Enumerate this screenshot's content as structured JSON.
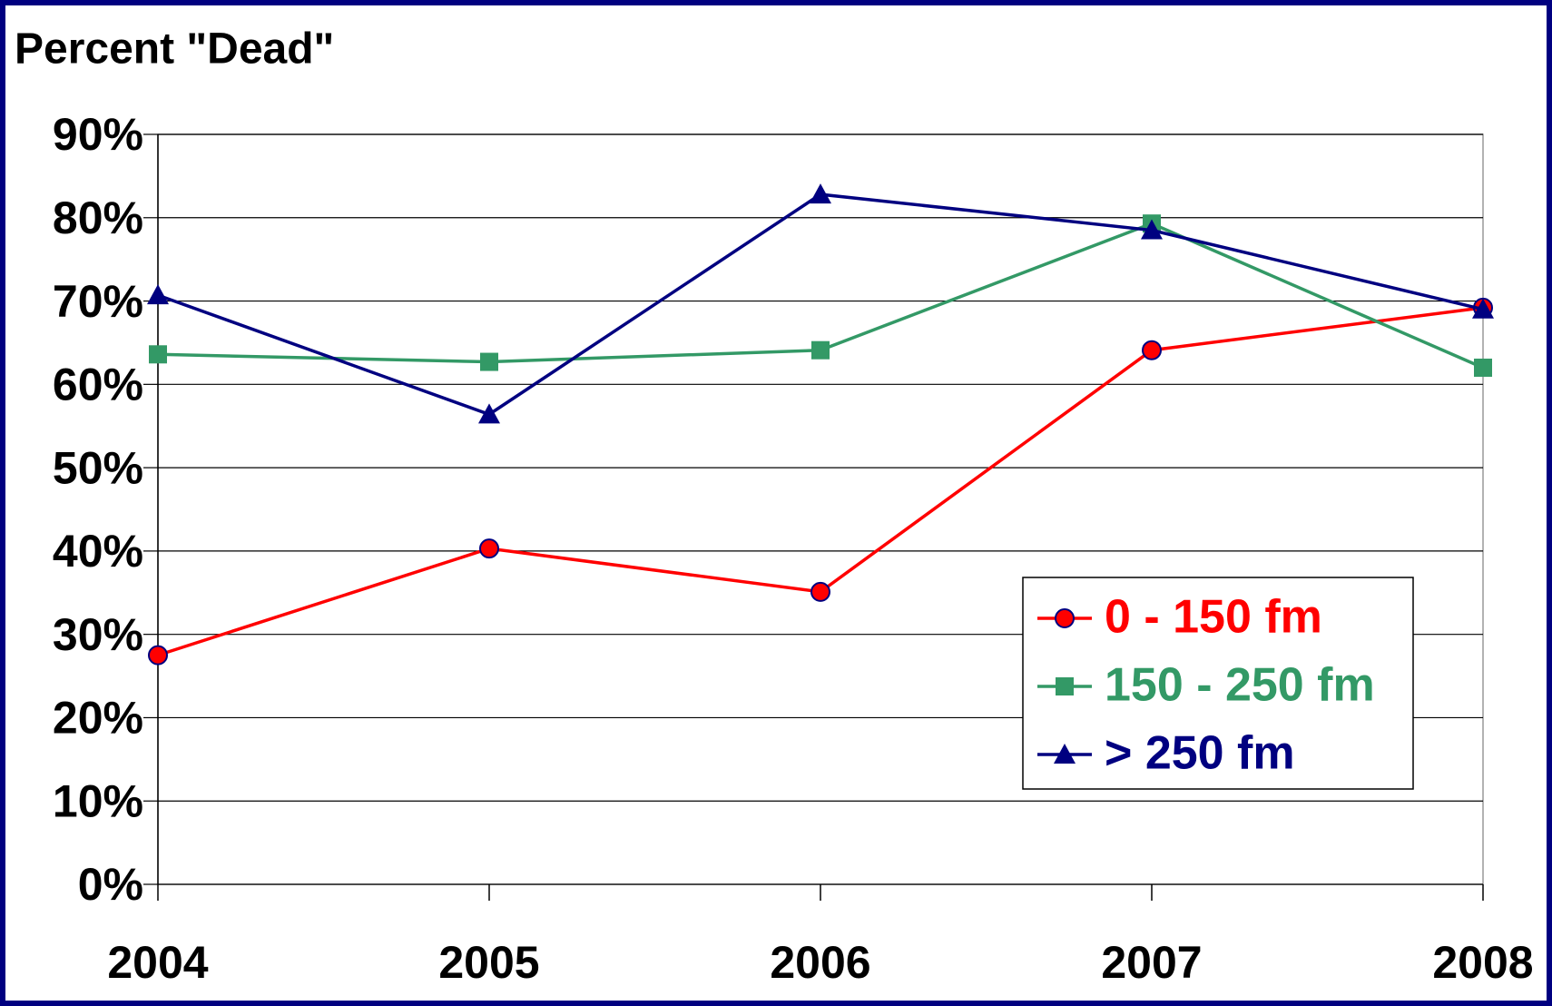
{
  "chart_data": {
    "type": "line",
    "title": "Percent \"Dead\"",
    "categories": [
      "2004",
      "2005",
      "2006",
      "2007",
      "2008"
    ],
    "series": [
      {
        "name": "0 - 150 fm",
        "color": "#ff0000",
        "marker": "circle",
        "values": [
          27.5,
          40.3,
          35.1,
          64.1,
          69.2
        ]
      },
      {
        "name": "150 - 250 fm",
        "color": "#339966",
        "marker": "square",
        "values": [
          63.6,
          62.7,
          64.1,
          79.3,
          62.0
        ]
      },
      {
        "name": "> 250 fm",
        "color": "#000080",
        "marker": "triangle",
        "values": [
          70.7,
          56.4,
          82.8,
          78.5,
          69.0
        ]
      }
    ],
    "ylim": [
      0,
      90
    ],
    "yticks": [
      {
        "value": 0,
        "label": "0%"
      },
      {
        "value": 10,
        "label": "10%"
      },
      {
        "value": 20,
        "label": "20%"
      },
      {
        "value": 30,
        "label": "30%"
      },
      {
        "value": 40,
        "label": "40%"
      },
      {
        "value": 50,
        "label": "50%"
      },
      {
        "value": 60,
        "label": "60%"
      },
      {
        "value": 70,
        "label": "70%"
      },
      {
        "value": 80,
        "label": "80%"
      },
      {
        "value": 90,
        "label": "90%"
      }
    ],
    "grid": true,
    "legend": "lower right"
  }
}
